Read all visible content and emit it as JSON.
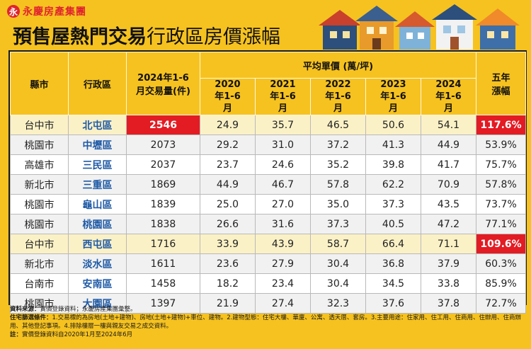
{
  "brand": {
    "logo_text": "永慶房產集團",
    "logo_mark": "永",
    "accent": "#e0242e"
  },
  "title": {
    "strong": "預售屋熱門交易",
    "light": "行政區房價漲幅"
  },
  "header": {
    "county": "縣市",
    "district": "行政區",
    "volume": "2024年1-6月交易量(件)",
    "avg_price": "平均單價 (萬/坪)",
    "years": [
      "2020年1-6月",
      "2021年1-6月",
      "2022年1-6月",
      "2023年1-6月",
      "2024年1-6月"
    ],
    "growth": "五年漲幅"
  },
  "rows": [
    {
      "county": "台中市",
      "district": "北屯區",
      "volume": "2546",
      "p2020": "24.9",
      "p2021": "35.7",
      "p2022": "46.5",
      "p2023": "50.6",
      "p2024": "54.1",
      "growth": "117.6%"
    },
    {
      "county": "桃園市",
      "district": "中壢區",
      "volume": "2073",
      "p2020": "29.2",
      "p2021": "31.0",
      "p2022": "37.2",
      "p2023": "41.3",
      "p2024": "44.9",
      "growth": "53.9%"
    },
    {
      "county": "高雄市",
      "district": "三民區",
      "volume": "2037",
      "p2020": "23.7",
      "p2021": "24.6",
      "p2022": "35.2",
      "p2023": "39.8",
      "p2024": "41.7",
      "growth": "75.7%"
    },
    {
      "county": "新北市",
      "district": "三重區",
      "volume": "1869",
      "p2020": "44.9",
      "p2021": "46.7",
      "p2022": "57.8",
      "p2023": "62.2",
      "p2024": "70.9",
      "growth": "57.8%"
    },
    {
      "county": "桃園市",
      "district": "龜山區",
      "volume": "1839",
      "p2020": "25.0",
      "p2021": "27.0",
      "p2022": "35.0",
      "p2023": "37.3",
      "p2024": "43.5",
      "growth": "73.7%"
    },
    {
      "county": "桃園市",
      "district": "桃園區",
      "volume": "1838",
      "p2020": "26.6",
      "p2021": "31.6",
      "p2022": "37.3",
      "p2023": "40.5",
      "p2024": "47.2",
      "growth": "77.1%"
    },
    {
      "county": "台中市",
      "district": "西屯區",
      "volume": "1716",
      "p2020": "33.9",
      "p2021": "43.9",
      "p2022": "58.7",
      "p2023": "66.4",
      "p2024": "71.1",
      "growth": "109.6%"
    },
    {
      "county": "新北市",
      "district": "淡水區",
      "volume": "1611",
      "p2020": "23.6",
      "p2021": "27.9",
      "p2022": "30.4",
      "p2023": "36.8",
      "p2024": "37.9",
      "growth": "60.3%"
    },
    {
      "county": "台南市",
      "district": "安南區",
      "volume": "1458",
      "p2020": "18.2",
      "p2021": "23.4",
      "p2022": "30.4",
      "p2023": "34.5",
      "p2024": "33.8",
      "growth": "85.9%"
    },
    {
      "county": "桃園市",
      "district": "大園區",
      "volume": "1397",
      "p2020": "21.9",
      "p2021": "27.4",
      "p2022": "32.3",
      "p2023": "37.6",
      "p2024": "37.8",
      "growth": "72.7%"
    }
  ],
  "notes": {
    "source_label": "資料來源：",
    "source_text": "實價登錄資料；永慶房產集團彙整。",
    "filter_label": "住宅篩選條件：",
    "filter_text": "1.交易標的為房地(土地+建物)、房地(土地+建物)+車位、建物。2.建物型態：住宅大樓、華廈、公寓、透天厝、套房。3.主要用途：住家用、住工用、住商用、住辦用、住商辦用、其他登記事項。4.排除樓層一樓與親友交易之成交資料。",
    "note_label": "註：",
    "note_text": "實價登錄資料自2020年1月至2024年6月"
  }
}
